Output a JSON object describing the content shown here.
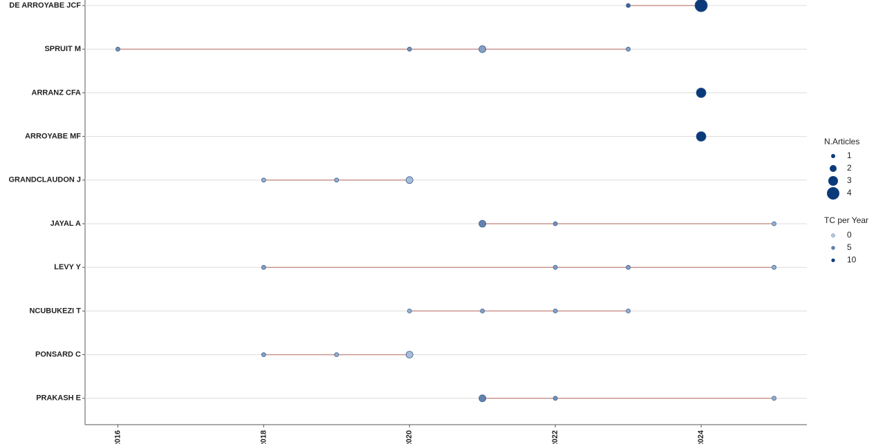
{
  "chart_data": {
    "type": "timeline",
    "categories": [
      "DE ARROYABE JCF",
      "SPRUIT M",
      "ARRANZ CFA",
      "ARROYABE MF",
      "GRANDCLAUDON J",
      "JAYAL A",
      "LEVY Y",
      "NCUBUKEZI T",
      "PONSARD C",
      "PRAKASH E"
    ],
    "series": [
      {
        "x": [
          2023,
          2024
        ],
        "n_articles": [
          1,
          4
        ],
        "tc_per_year": [
          7,
          10
        ]
      },
      {
        "x": [
          2016,
          2020,
          2021,
          2023
        ],
        "n_articles": [
          1,
          1,
          2,
          1
        ],
        "tc_per_year": [
          4,
          4,
          3,
          3
        ]
      },
      {
        "x": [
          2024
        ],
        "n_articles": [
          3
        ],
        "tc_per_year": [
          10
        ]
      },
      {
        "x": [
          2024
        ],
        "n_articles": [
          3
        ],
        "tc_per_year": [
          10
        ]
      },
      {
        "x": [
          2018,
          2019,
          2020
        ],
        "n_articles": [
          1,
          1,
          2
        ],
        "tc_per_year": [
          2,
          2,
          1
        ]
      },
      {
        "x": [
          2021,
          2022,
          2025
        ],
        "n_articles": [
          2,
          1,
          1
        ],
        "tc_per_year": [
          5,
          4,
          2
        ]
      },
      {
        "x": [
          2018,
          2022,
          2023,
          2025
        ],
        "n_articles": [
          1,
          1,
          1,
          1
        ],
        "tc_per_year": [
          3,
          3,
          3,
          2
        ]
      },
      {
        "x": [
          2020,
          2021,
          2022,
          2023
        ],
        "n_articles": [
          1,
          1,
          1,
          1
        ],
        "tc_per_year": [
          2,
          3,
          3,
          2
        ]
      },
      {
        "x": [
          2018,
          2019,
          2020
        ],
        "n_articles": [
          1,
          1,
          2
        ],
        "tc_per_year": [
          3,
          2,
          1
        ]
      },
      {
        "x": [
          2021,
          2022,
          2025
        ],
        "n_articles": [
          2,
          1,
          1
        ],
        "tc_per_year": [
          5,
          4,
          2
        ]
      }
    ],
    "xlim": [
      2015.55,
      2025.45
    ],
    "xticks": [
      2016,
      2018,
      2020,
      2022,
      2024
    ],
    "line_color": "#c9958f",
    "color_low": "#b9cbe3",
    "color_high": "#0b3a7a",
    "grid": true,
    "size_legend": {
      "title": "N.Articles",
      "values": [
        1,
        2,
        3,
        4
      ]
    },
    "color_legend": {
      "title": "TC per Year",
      "values": [
        0,
        5,
        10
      ]
    }
  }
}
